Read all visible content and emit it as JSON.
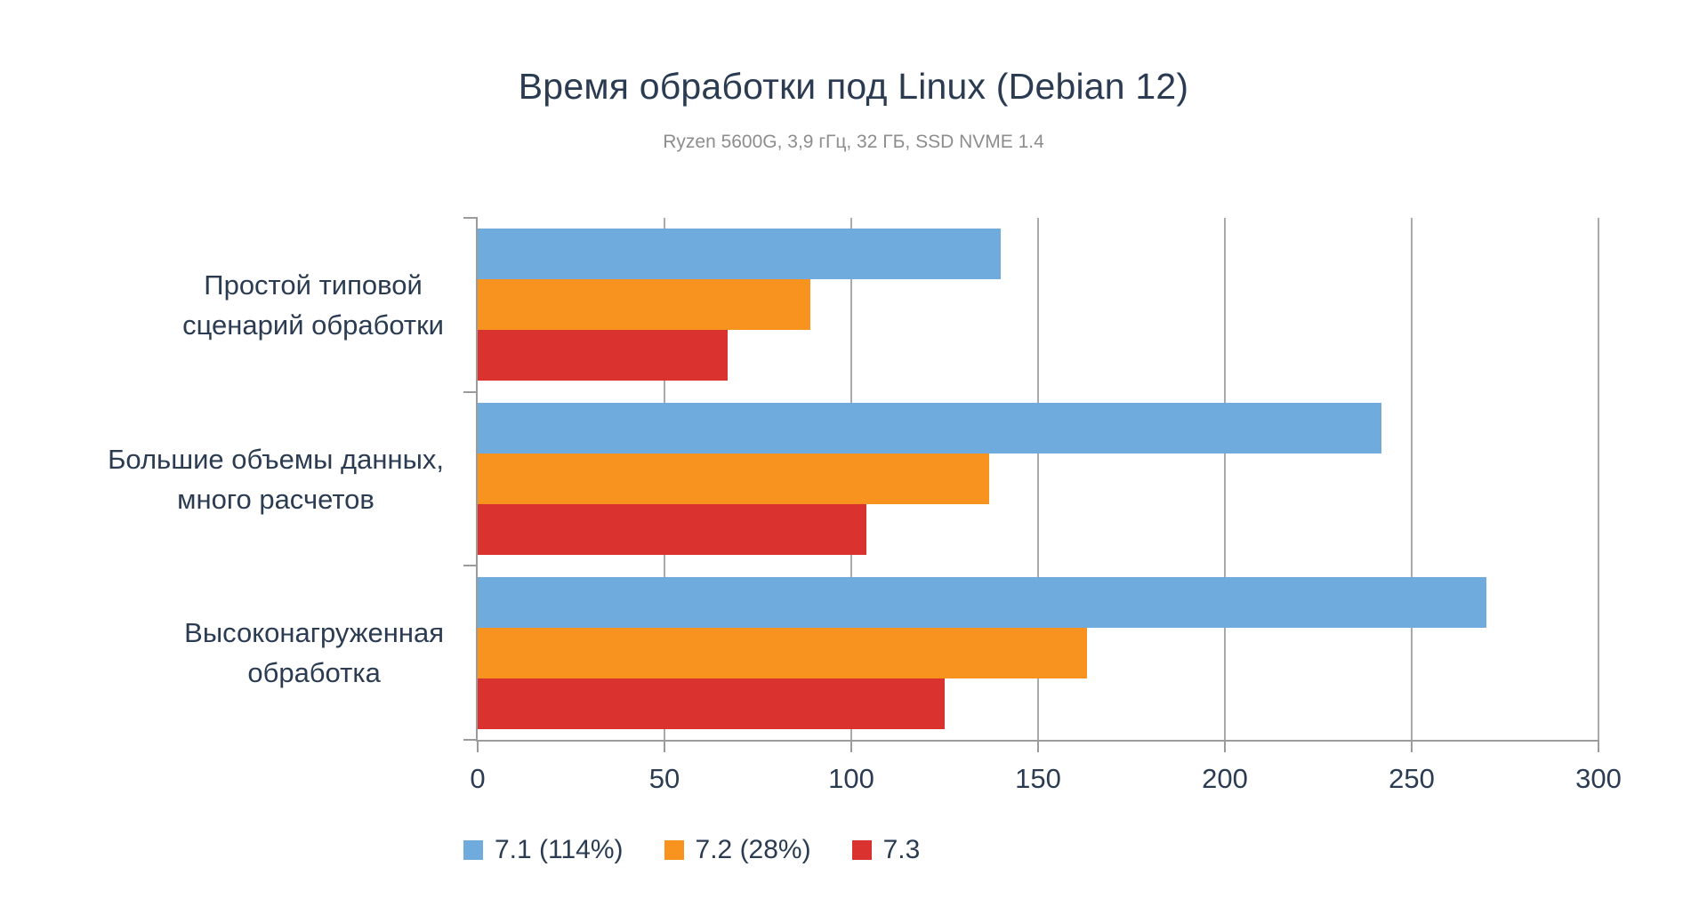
{
  "chart_data": {
    "type": "bar",
    "orientation": "horizontal",
    "title": "Время обработки под Linux (Debian 12)",
    "subtitle": "Ryzen 5600G, 3,9 гГц, 32 ГБ, SSD NVME 1.4",
    "categories": [
      {
        "lines": [
          "Простой типовой",
          "сценарий обработки"
        ]
      },
      {
        "lines": [
          "Большие объемы данных,",
          "много расчетов"
        ]
      },
      {
        "lines": [
          "Высоконагруженная",
          "обработка"
        ]
      }
    ],
    "series": [
      {
        "name": "7.1 (114%)",
        "color": "#6FACDD",
        "values": [
          140,
          242,
          270
        ]
      },
      {
        "name": "7.2 (28%)",
        "color": "#F7931E",
        "values": [
          89,
          137,
          163
        ]
      },
      {
        "name": "7.3",
        "color": "#DA322F",
        "values": [
          67,
          104,
          125
        ]
      }
    ],
    "x_ticks": [
      0,
      50,
      100,
      150,
      200,
      250,
      300
    ],
    "xlim": [
      0,
      300
    ],
    "grid": {
      "vertical": true,
      "color": "#A9A9A9"
    },
    "axis_color": "#9B9B9B",
    "text_color": "#2B3C52",
    "subtitle_color": "#8D8D8D",
    "legend_position": "bottom-left"
  }
}
